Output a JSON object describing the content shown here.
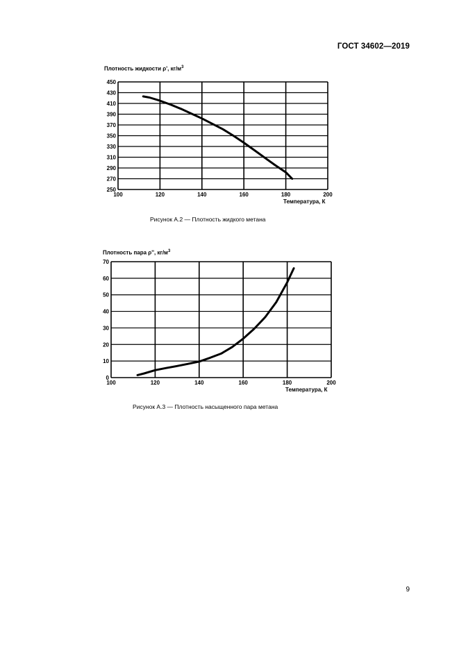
{
  "document": {
    "header": "ГОСТ 34602—2019",
    "page_number": "9"
  },
  "figures": [
    {
      "caption": "Рисунок А.2 — Плотность жидкого метана",
      "ylabel_main": "Плотность жидкости ρ', кг/м",
      "ylabel_sup": "3",
      "xlabel": "Температура, К"
    },
    {
      "caption": "Рисунок А.3 — Плотность насыщенного пара метана",
      "ylabel_main": "Плотность пара ρ'', кг/м",
      "ylabel_sup": "3",
      "xlabel": "Температура, К"
    }
  ],
  "chart_data": [
    {
      "type": "line",
      "xlabel": "Температура, К",
      "ylabel": "Плотность жидкости ρ', кг/м3",
      "xlim": [
        100,
        200
      ],
      "ylim": [
        250,
        450
      ],
      "xticks": [
        100,
        120,
        140,
        160,
        180,
        200
      ],
      "yticks": [
        250,
        270,
        290,
        310,
        330,
        350,
        370,
        390,
        410,
        430,
        450
      ],
      "grid": true,
      "x": [
        112,
        115,
        120,
        125,
        130,
        135,
        140,
        145,
        150,
        155,
        160,
        165,
        170,
        175,
        180,
        183
      ],
      "y": [
        423,
        421,
        415,
        408,
        400,
        391,
        382,
        372,
        362,
        350,
        337,
        323,
        309,
        295,
        282,
        270
      ]
    },
    {
      "type": "line",
      "xlabel": "Температура, К",
      "ylabel": "Плотность пара ρ'', кг/м3",
      "xlim": [
        100,
        200
      ],
      "ylim": [
        0,
        70
      ],
      "xticks": [
        100,
        120,
        140,
        160,
        180,
        200
      ],
      "yticks": [
        0,
        10,
        20,
        30,
        40,
        50,
        60,
        70
      ],
      "grid": true,
      "x": [
        112,
        115,
        120,
        125,
        130,
        135,
        140,
        145,
        150,
        155,
        160,
        165,
        170,
        175,
        180,
        183
      ],
      "y": [
        1.5,
        2.5,
        4.5,
        5.8,
        7.0,
        8.3,
        9.7,
        12.0,
        14.5,
        18.5,
        23.5,
        29.5,
        36.5,
        45.5,
        57.5,
        66
      ]
    }
  ]
}
